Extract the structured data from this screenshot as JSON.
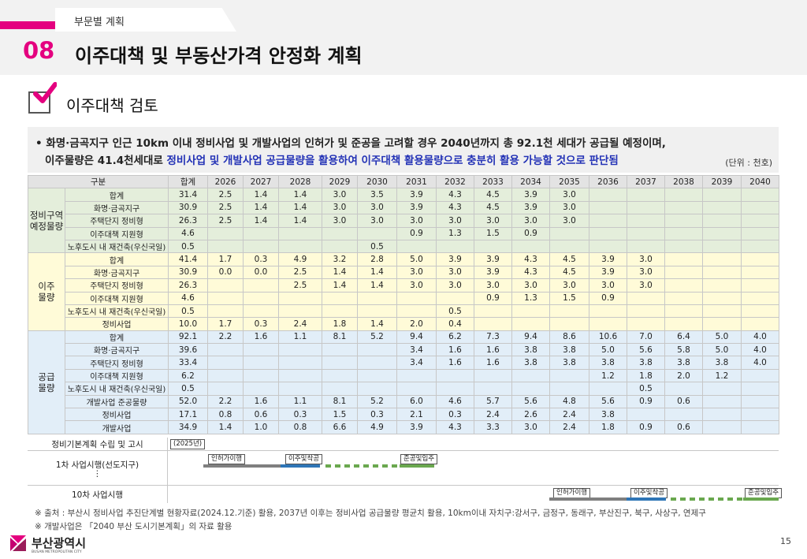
{
  "header": {
    "section": "부문별 계획",
    "number": "08",
    "title": "이주대책 및 부동산가격 안정화 계획"
  },
  "subheading": "이주대책 검토",
  "bullet": {
    "line1": "• 화명·금곡지구 인근 10km 이내 정비사업 및 개발사업의 인허가 및 준공을 고려할 경우 2040년까지 총 92.1천 세대가 공급될 예정이며,",
    "line2_plain": "이주물량은 41.4천세대로 ",
    "line2_highlight": "정비사업 및 개발사업 공급물량을 활용하여 이주대책 활용물량으로 충분히 활용 가능할 것으로 판단됨",
    "unit": "(단위 : 천호)"
  },
  "table": {
    "header_label": "구분",
    "columns": [
      "합계",
      "2026",
      "2027",
      "2028",
      "2029",
      "2030",
      "2031",
      "2032",
      "2033",
      "2034",
      "2035",
      "2036",
      "2037",
      "2038",
      "2039",
      "2040"
    ],
    "groups": [
      {
        "label": "정비구역\n예정물량",
        "tone": "g1",
        "rows": [
          {
            "label": "합계",
            "cells": [
              "31.4",
              "2.5",
              "1.4",
              "1.4",
              "3.0",
              "3.5",
              "3.9",
              "4.3",
              "4.5",
              "3.9",
              "3.0",
              "",
              "",
              "",
              "",
              ""
            ]
          },
          {
            "label": "화명·금곡지구",
            "cells": [
              "30.9",
              "2.5",
              "1.4",
              "1.4",
              "3.0",
              "3.0",
              "3.9",
              "4.3",
              "4.5",
              "3.9",
              "3.0",
              "",
              "",
              "",
              "",
              ""
            ]
          },
          {
            "label": "주택단지 정비형",
            "cells": [
              "26.3",
              "2.5",
              "1.4",
              "1.4",
              "3.0",
              "3.0",
              "3.0",
              "3.0",
              "3.0",
              "3.0",
              "3.0",
              "",
              "",
              "",
              "",
              ""
            ]
          },
          {
            "label": "이주대책 지원형",
            "cells": [
              "4.6",
              "",
              "",
              "",
              "",
              "",
              "0.9",
              "1.3",
              "1.5",
              "0.9",
              "",
              "",
              "",
              "",
              "",
              ""
            ]
          },
          {
            "label": "노후도시 내 재건축(우신국일)",
            "cells": [
              "0.5",
              "",
              "",
              "",
              "",
              "0.5",
              "",
              "",
              "",
              "",
              "",
              "",
              "",
              "",
              "",
              ""
            ]
          }
        ]
      },
      {
        "label": "이주\n물량",
        "tone": "g2",
        "rows": [
          {
            "label": "합계",
            "cells": [
              "41.4",
              "1.7",
              "0.3",
              "4.9",
              "3.2",
              "2.8",
              "5.0",
              "3.9",
              "3.9",
              "4.3",
              "4.5",
              "3.9",
              "3.0",
              "",
              "",
              ""
            ]
          },
          {
            "label": "화명·금곡지구",
            "cells": [
              "30.9",
              "0.0",
              "0.0",
              "2.5",
              "1.4",
              "1.4",
              "3.0",
              "3.0",
              "3.9",
              "4.3",
              "4.5",
              "3.9",
              "3.0",
              "",
              "",
              ""
            ]
          },
          {
            "label": "주택단지 정비형",
            "cells": [
              "26.3",
              "",
              "",
              "2.5",
              "1.4",
              "1.4",
              "3.0",
              "3.0",
              "3.0",
              "3.0",
              "3.0",
              "3.0",
              "3.0",
              "",
              "",
              ""
            ]
          },
          {
            "label": "이주대책 지원형",
            "cells": [
              "4.6",
              "",
              "",
              "",
              "",
              "",
              "",
              "",
              "0.9",
              "1.3",
              "1.5",
              "0.9",
              "",
              "",
              "",
              ""
            ]
          },
          {
            "label": "노후도시 내 재건축(우신국일)",
            "cells": [
              "0.5",
              "",
              "",
              "",
              "",
              "",
              "",
              "0.5",
              "",
              "",
              "",
              "",
              "",
              "",
              "",
              ""
            ]
          },
          {
            "label": "정비사업",
            "cells": [
              "10.0",
              "1.7",
              "0.3",
              "2.4",
              "1.8",
              "1.4",
              "2.0",
              "0.4",
              "",
              "",
              "",
              "",
              "",
              "",
              "",
              ""
            ]
          }
        ]
      },
      {
        "label": "공급\n물량",
        "tone": "g3",
        "rows": [
          {
            "label": "합계",
            "cells": [
              "92.1",
              "2.2",
              "1.6",
              "1.1",
              "8.1",
              "5.2",
              "9.4",
              "6.2",
              "7.3",
              "9.4",
              "8.6",
              "10.6",
              "7.0",
              "6.4",
              "5.0",
              "4.0"
            ]
          },
          {
            "label": "화명·금곡지구",
            "cells": [
              "39.6",
              "",
              "",
              "",
              "",
              "",
              "3.4",
              "1.6",
              "1.6",
              "3.8",
              "3.8",
              "5.0",
              "5.6",
              "5.8",
              "5.0",
              "4.0"
            ]
          },
          {
            "label": "주택단지 정비형",
            "cells": [
              "33.4",
              "",
              "",
              "",
              "",
              "",
              "3.4",
              "1.6",
              "1.6",
              "3.8",
              "3.8",
              "3.8",
              "3.8",
              "3.8",
              "3.8",
              "4.0"
            ]
          },
          {
            "label": "이주대책 지원형",
            "cells": [
              "6.2",
              "",
              "",
              "",
              "",
              "",
              "",
              "",
              "",
              "",
              "",
              "1.2",
              "1.8",
              "2.0",
              "1.2",
              ""
            ]
          },
          {
            "label": "노후도시 내 재건축(우신국일)",
            "cells": [
              "0.5",
              "",
              "",
              "",
              "",
              "",
              "",
              "",
              "",
              "",
              "",
              "",
              "0.5",
              "",
              "",
              ""
            ]
          },
          {
            "label": "개발사업 준공물량",
            "cells": [
              "52.0",
              "2.2",
              "1.6",
              "1.1",
              "8.1",
              "5.2",
              "6.0",
              "4.6",
              "5.7",
              "5.6",
              "4.8",
              "5.6",
              "0.9",
              "0.6",
              "",
              ""
            ]
          },
          {
            "label": "정비사업",
            "cells": [
              "17.1",
              "0.8",
              "0.6",
              "0.3",
              "1.5",
              "0.3",
              "2.1",
              "0.3",
              "2.4",
              "2.6",
              "2.4",
              "3.8",
              "",
              "",
              "",
              ""
            ]
          },
          {
            "label": "개발사업",
            "cells": [
              "34.9",
              "1.4",
              "1.0",
              "0.8",
              "6.6",
              "4.9",
              "3.9",
              "4.3",
              "3.3",
              "3.0",
              "2.4",
              "1.8",
              "0.9",
              "0.6",
              "",
              ""
            ]
          }
        ]
      }
    ]
  },
  "timeline": {
    "plan_label": "정비기본계획 수립 및 고시",
    "plan_tag": "(2025년)",
    "phase1_label": "1차 사업시행(선도지구)",
    "phase1_dots": "⋮",
    "phase1_tags": [
      "인허가이행",
      "이주및착공",
      "준공및입주"
    ],
    "phase10_label": "10차 사업시행",
    "phase10_tags": [
      "인허가이행",
      "이주및착공",
      "준공및입주"
    ],
    "colors": {
      "permit": "#7f7f7f",
      "move": "#2e75b6",
      "complete": "#6aa84f"
    }
  },
  "notes": [
    "※ 출처 : 부산시 정비사업 추진단계별 현황자료(2024.12.기준) 활용, 2037년 이후는 정비사업 공급물량 평균치 활용, 10km이내 자치구:강서구, 금정구, 동래구, 부산진구, 북구, 사상구, 연제구",
    "※ 개발사업은 「2040 부산 도시기본계획」의 자료 활용"
  ],
  "footer": {
    "org": "부산광역시",
    "org_en": "BUSAN METROPOLITAN CITY",
    "page": "15"
  },
  "colors": {
    "accent": "#e4007f",
    "highlight": "#2332b6"
  }
}
